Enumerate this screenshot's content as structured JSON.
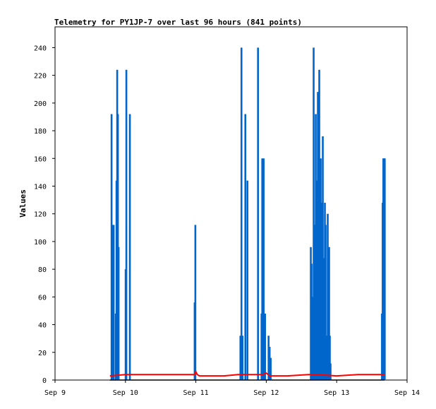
{
  "chart_data": {
    "type": "bar",
    "title": "Telemetry for PY1JP-7 over last 96 hours (841 points)",
    "xlabel": "",
    "ylabel": "Values",
    "ylim": [
      0,
      255
    ],
    "xlim": [
      0,
      5
    ],
    "yticks": [
      0,
      20,
      40,
      60,
      80,
      100,
      120,
      140,
      160,
      180,
      200,
      220,
      240
    ],
    "xticks": [
      {
        "value": 0,
        "label": "Sep 9"
      },
      {
        "value": 1,
        "label": "Sep 10"
      },
      {
        "value": 2,
        "label": "Sep 11"
      },
      {
        "value": 3,
        "label": "Sep 12"
      },
      {
        "value": 4,
        "label": "Sep 13"
      },
      {
        "value": 5,
        "label": "Sep 14"
      }
    ],
    "grid": false,
    "legend": "none",
    "colors": {
      "bars": "#0066cc",
      "line": "#ff0000",
      "baseline": "#000000"
    },
    "series": [
      {
        "style": "bars",
        "x": [
          0.8,
          0.815,
          0.83,
          0.86,
          0.87,
          0.88,
          0.89,
          0.9,
          1.0,
          1.01,
          1.06,
          1.98,
          1.99,
          2.63,
          2.645,
          2.66,
          2.7,
          2.73,
          2.88,
          2.93,
          2.94,
          2.95,
          2.96,
          2.97,
          2.98,
          3.03,
          3.045,
          3.06,
          3.63,
          3.64,
          3.66,
          3.67,
          3.68,
          3.69,
          3.7,
          3.71,
          3.72,
          3.73,
          3.74,
          3.75,
          3.76,
          3.77,
          3.78,
          3.79,
          3.8,
          3.81,
          3.82,
          3.83,
          3.84,
          3.85,
          3.86,
          3.87,
          3.88,
          3.89,
          3.9,
          3.91,
          4.64,
          4.65,
          4.66,
          4.67,
          4.68
        ],
        "y": [
          192,
          112,
          112,
          48,
          144,
          224,
          192,
          96,
          80,
          224,
          192,
          56,
          112,
          32,
          240,
          32,
          192,
          144,
          240,
          48,
          160,
          96,
          160,
          8,
          48,
          32,
          24,
          16,
          96,
          84,
          60,
          240,
          112,
          56,
          192,
          144,
          32,
          208,
          104,
          224,
          32,
          160,
          56,
          128,
          176,
          88,
          80,
          128,
          112,
          32,
          32,
          120,
          64,
          96,
          32,
          12,
          48,
          128,
          160,
          160,
          160
        ]
      },
      {
        "style": "line",
        "x": [
          0.78,
          1.0,
          1.5,
          1.98,
          2.0,
          2.02,
          2.05,
          2.4,
          2.6,
          2.8,
          2.95,
          3.0,
          3.05,
          3.3,
          3.6,
          3.7,
          4.0,
          4.3,
          4.5,
          4.68
        ],
        "y": [
          3,
          4,
          4,
          4,
          6,
          4,
          3,
          3,
          4,
          4,
          4,
          5,
          3,
          3,
          4,
          4,
          3,
          4,
          4,
          4
        ]
      },
      {
        "style": "line",
        "x": [
          0.78,
          4.68
        ],
        "y": [
          0,
          0
        ]
      }
    ]
  }
}
